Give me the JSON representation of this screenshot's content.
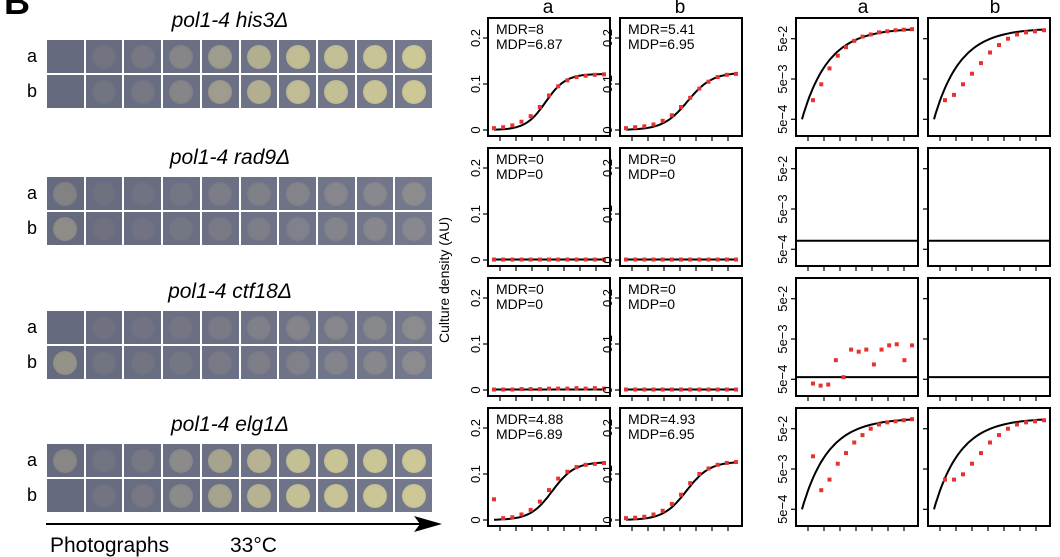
{
  "panel": {
    "letter": "B"
  },
  "photos": {
    "strains": [
      {
        "title": "pol1-4 his3Δ",
        "rows": [
          {
            "label": "a",
            "spots": [
              0.05,
              0.15,
              0.2,
              0.35,
              0.55,
              0.7,
              0.85,
              0.9,
              0.95,
              1.0
            ]
          },
          {
            "label": "b",
            "spots": [
              0.05,
              0.15,
              0.2,
              0.35,
              0.55,
              0.7,
              0.85,
              0.9,
              0.95,
              1.0
            ]
          }
        ]
      },
      {
        "title": "pol1-4 rad9Δ",
        "rows": [
          {
            "label": "a",
            "spots": [
              0.35,
              0.1,
              0.12,
              0.15,
              0.22,
              0.25,
              0.3,
              0.3,
              0.32,
              0.35
            ]
          },
          {
            "label": "b",
            "spots": [
              0.45,
              0.1,
              0.12,
              0.15,
              0.2,
              0.22,
              0.25,
              0.28,
              0.3,
              0.3
            ]
          }
        ]
      },
      {
        "title": "pol1-4 ctf18Δ",
        "rows": [
          {
            "label": "a",
            "spots": [
              0.05,
              0.1,
              0.12,
              0.15,
              0.2,
              0.25,
              0.3,
              0.3,
              0.32,
              0.35
            ]
          },
          {
            "label": "b",
            "spots": [
              0.5,
              0.15,
              0.15,
              0.15,
              0.2,
              0.22,
              0.25,
              0.28,
              0.3,
              0.35
            ]
          }
        ]
      },
      {
        "title": "pol1-4 elg1Δ",
        "rows": [
          {
            "label": "a",
            "spots": [
              0.4,
              0.15,
              0.2,
              0.4,
              0.6,
              0.75,
              0.9,
              0.95,
              0.98,
              1.0
            ]
          },
          {
            "label": "b",
            "spots": [
              0.05,
              0.15,
              0.2,
              0.4,
              0.6,
              0.75,
              0.9,
              0.95,
              0.98,
              1.0
            ]
          }
        ]
      }
    ],
    "footer": {
      "label": "Photographs",
      "temperature": "33°C"
    }
  },
  "plots": {
    "ylabel": "Culture density (AU)",
    "column_labels": [
      "a",
      "b",
      "a",
      "b"
    ],
    "linear_ticks": [
      "0",
      "0.1",
      "0.2"
    ],
    "log_ticks": [
      "5e−4",
      "5e−3",
      "5e-2"
    ],
    "colors": {
      "points": "#e8322f",
      "line": "#000000"
    }
  },
  "chart_data": [
    {
      "type": "scatter",
      "row": "his3",
      "column": "a",
      "scale": "linear",
      "ylim": [
        0,
        0.2
      ],
      "text": [
        "MDR=8",
        "MDP=6.87"
      ],
      "points": [
        0.004,
        0.006,
        0.01,
        0.018,
        0.03,
        0.05,
        0.075,
        0.095,
        0.108,
        0.115,
        0.118,
        0.12,
        0.121
      ],
      "fit": {
        "asymptote": 0.122,
        "mid": 4.7,
        "rate": 1.1,
        "range": [
          0,
          10
        ]
      }
    },
    {
      "type": "scatter",
      "row": "his3",
      "column": "b",
      "scale": "linear",
      "ylim": [
        0,
        0.2
      ],
      "text": [
        "MDR=5.41",
        "MDP=6.95"
      ],
      "points": [
        0.004,
        0.006,
        0.008,
        0.012,
        0.02,
        0.032,
        0.05,
        0.07,
        0.09,
        0.105,
        0.115,
        0.12,
        0.122
      ],
      "fit": {
        "asymptote": 0.125,
        "mid": 5.6,
        "rate": 0.9,
        "range": [
          0,
          10
        ]
      }
    },
    {
      "type": "scatter",
      "row": "his3",
      "column": "a",
      "scale": "log",
      "points": [
        0.3,
        0.45,
        0.6,
        0.72,
        0.8,
        0.86,
        0.9,
        0.92,
        0.94,
        0.95,
        0.96,
        0.965,
        0.97
      ],
      "fit": {
        "kind": "log-curve",
        "range": [
          0,
          10
        ]
      }
    },
    {
      "type": "scatter",
      "row": "his3",
      "column": "b",
      "scale": "log",
      "points": [
        0.3,
        0.35,
        0.45,
        0.55,
        0.65,
        0.75,
        0.82,
        0.88,
        0.92,
        0.94,
        0.95,
        0.96
      ],
      "fit": {
        "kind": "log-curve",
        "range": [
          0,
          10
        ]
      }
    },
    {
      "type": "scatter",
      "row": "rad9",
      "column": "a",
      "scale": "linear",
      "ylim": [
        0,
        0.2
      ],
      "text": [
        "MDR=0",
        "MDP=0"
      ],
      "points": [
        0.001,
        0.001,
        0.001,
        0.001,
        0.001,
        0.001,
        0.001,
        0.001,
        0.001,
        0.001,
        0.001,
        0.001,
        0.001
      ],
      "fit": {
        "asymptote": 0.001,
        "mid": 0,
        "rate": 0,
        "range": [
          0,
          10
        ]
      }
    },
    {
      "type": "scatter",
      "row": "rad9",
      "column": "b",
      "scale": "linear",
      "ylim": [
        0,
        0.2
      ],
      "text": [
        "MDR=0",
        "MDP=0"
      ],
      "points": [
        0.001,
        0.001,
        0.001,
        0.001,
        0.001,
        0.001,
        0.001,
        0.001,
        0.001,
        0.001,
        0.001,
        0.001,
        0.001
      ],
      "fit": {
        "asymptote": 0.001,
        "mid": 0,
        "rate": 0,
        "range": [
          0,
          10
        ]
      }
    },
    {
      "type": "scatter",
      "row": "rad9",
      "column": "a",
      "scale": "log",
      "points": [],
      "fit": {
        "kind": "flat",
        "level": 0.2,
        "range": [
          0,
          10
        ]
      }
    },
    {
      "type": "scatter",
      "row": "rad9",
      "column": "b",
      "scale": "log",
      "points": [],
      "fit": {
        "kind": "flat",
        "level": 0.2,
        "range": [
          0,
          10
        ]
      }
    },
    {
      "type": "scatter",
      "row": "ctf18",
      "column": "a",
      "scale": "linear",
      "ylim": [
        0,
        0.2
      ],
      "text": [
        "MDR=0",
        "MDP=0"
      ],
      "points": [
        0.001,
        0.001,
        0.001,
        0.002,
        0.002,
        0.002,
        0.003,
        0.003,
        0.003,
        0.004,
        0.003,
        0.004,
        0.003
      ],
      "fit": {
        "asymptote": 0.001,
        "mid": 0,
        "rate": 0,
        "range": [
          0,
          10
        ]
      }
    },
    {
      "type": "scatter",
      "row": "ctf18",
      "column": "b",
      "scale": "linear",
      "ylim": [
        0,
        0.2
      ],
      "text": [
        "MDR=0",
        "MDP=0"
      ],
      "points": [
        0.001,
        0.001,
        0.001,
        0.001,
        0.001,
        0.001,
        0.001,
        0.001,
        0.001,
        0.001,
        0.001,
        0.001,
        0.001
      ],
      "fit": {
        "asymptote": 0.001,
        "mid": 0,
        "rate": 0,
        "range": [
          0,
          10
        ]
      }
    },
    {
      "type": "scatter",
      "row": "ctf18",
      "column": "a",
      "scale": "log",
      "points": [
        0.08,
        0.06,
        0.07,
        0.3,
        0.14,
        0.4,
        0.38,
        0.4,
        0.26,
        0.4,
        0.44,
        0.45,
        0.3,
        0.44
      ],
      "fit": {
        "kind": "flat",
        "level": 0.14,
        "range": [
          0,
          10
        ]
      }
    },
    {
      "type": "scatter",
      "row": "ctf18",
      "column": "b",
      "scale": "log",
      "points": [],
      "fit": {
        "kind": "flat",
        "level": 0.14,
        "range": [
          0,
          10
        ]
      }
    },
    {
      "type": "scatter",
      "row": "elg1",
      "column": "a",
      "scale": "linear",
      "ylim": [
        0,
        0.2
      ],
      "text": [
        "MDR=4.88",
        "MDP=6.89"
      ],
      "points": [
        0.045,
        0.004,
        0.006,
        0.012,
        0.022,
        0.04,
        0.065,
        0.09,
        0.105,
        0.115,
        0.12,
        0.122,
        0.124
      ],
      "fit": {
        "asymptote": 0.126,
        "mid": 5.3,
        "rate": 1.0,
        "range": [
          0,
          10
        ]
      }
    },
    {
      "type": "scatter",
      "row": "elg1",
      "column": "b",
      "scale": "linear",
      "ylim": [
        0,
        0.2
      ],
      "text": [
        "MDR=4.93",
        "MDP=6.95"
      ],
      "points": [
        0.004,
        0.005,
        0.007,
        0.012,
        0.02,
        0.035,
        0.055,
        0.08,
        0.1,
        0.112,
        0.12,
        0.124,
        0.126
      ],
      "fit": {
        "asymptote": 0.127,
        "mid": 5.5,
        "rate": 0.95,
        "range": [
          0,
          10
        ]
      }
    },
    {
      "type": "scatter",
      "row": "elg1",
      "column": "a",
      "scale": "log",
      "points": [
        0.62,
        0.3,
        0.4,
        0.55,
        0.65,
        0.75,
        0.82,
        0.88,
        0.92,
        0.94,
        0.95,
        0.96,
        0.97
      ],
      "fit": {
        "kind": "log-curve",
        "range": [
          0,
          10
        ]
      }
    },
    {
      "type": "scatter",
      "row": "elg1",
      "column": "b",
      "scale": "log",
      "points": [
        0.4,
        0.4,
        0.45,
        0.55,
        0.65,
        0.75,
        0.82,
        0.88,
        0.92,
        0.94,
        0.95,
        0.96
      ],
      "fit": {
        "kind": "log-curve",
        "range": [
          0,
          10
        ]
      }
    }
  ]
}
